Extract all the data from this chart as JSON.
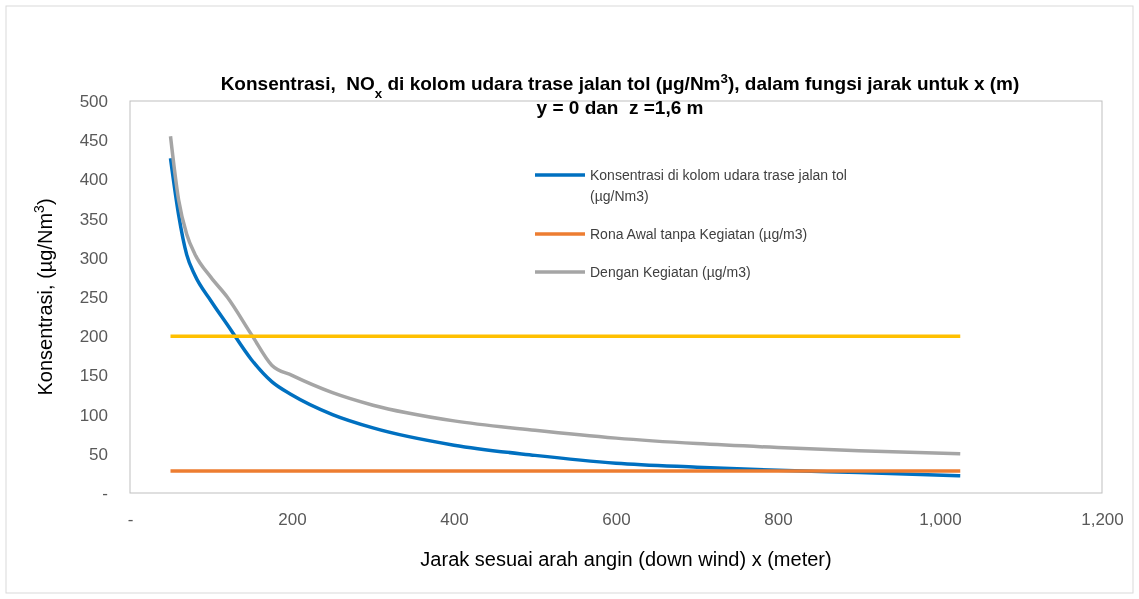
{
  "chart_data": {
    "type": "line",
    "title": "Konsentrasi,  NO$_{x}$ di kolom udara trase jalan tol (µg/Nm$^{3}$), dalam fungsi jarak untuk x (m)   y = 0 dan  z =1,6 m",
    "xlabel": "Jarak sesuai arah angin (down wind) x (meter)",
    "ylabel": "Konsentrasi, (µg/Nm$^{3}$)",
    "xlim": [
      0,
      1200
    ],
    "xticks": [
      {
        "value": 0,
        "label": "-"
      },
      200,
      400,
      600,
      800,
      {
        "value": 1000,
        "label": "1,000"
      },
      {
        "value": 1200,
        "label": "1,200"
      }
    ],
    "ylim": [
      0,
      500
    ],
    "yticks": [
      {
        "value": 0,
        "label": "-"
      },
      50,
      100,
      150,
      200,
      250,
      300,
      350,
      400,
      450,
      500
    ],
    "grid": false,
    "legend": "top right",
    "marker": "none",
    "line_style": "solid",
    "series": [
      {
        "name": "Konsentrasi di kolom udara trase jalan tol (µg/Nm3)",
        "color": "#0070c0",
        "x": [
          50,
          60,
          70,
          80,
          100,
          120,
          150,
          175,
          200,
          250,
          300,
          400,
          500,
          600,
          700,
          800,
          900,
          1025
        ],
        "values": [
          427,
          355,
          304,
          278,
          245,
          215,
          170,
          142,
          125,
          100,
          83,
          61,
          48,
          38,
          33,
          29,
          26,
          22
        ]
      },
      {
        "name": "Rona Awal tanpa Kegiatan (µg/m3)",
        "color": "#ed7d31",
        "x": [
          50,
          1025
        ],
        "values": [
          28,
          28
        ]
      },
      {
        "name": "Dengan Kegiatan (µg/m3)",
        "color": "#a5a5a5",
        "x": [
          50,
          60,
          70,
          80,
          100,
          120,
          150,
          175,
          200,
          250,
          300,
          400,
          500,
          600,
          700,
          800,
          900,
          1025
        ],
        "values": [
          455,
          374,
          330,
          305,
          275,
          250,
          202,
          163,
          150,
          128,
          112,
          92,
          80,
          70,
          63,
          58,
          54,
          50
        ]
      },
      {
        "color": "#ffc000",
        "x": [
          50,
          1025
        ],
        "values": [
          200,
          200
        ]
      }
    ]
  }
}
